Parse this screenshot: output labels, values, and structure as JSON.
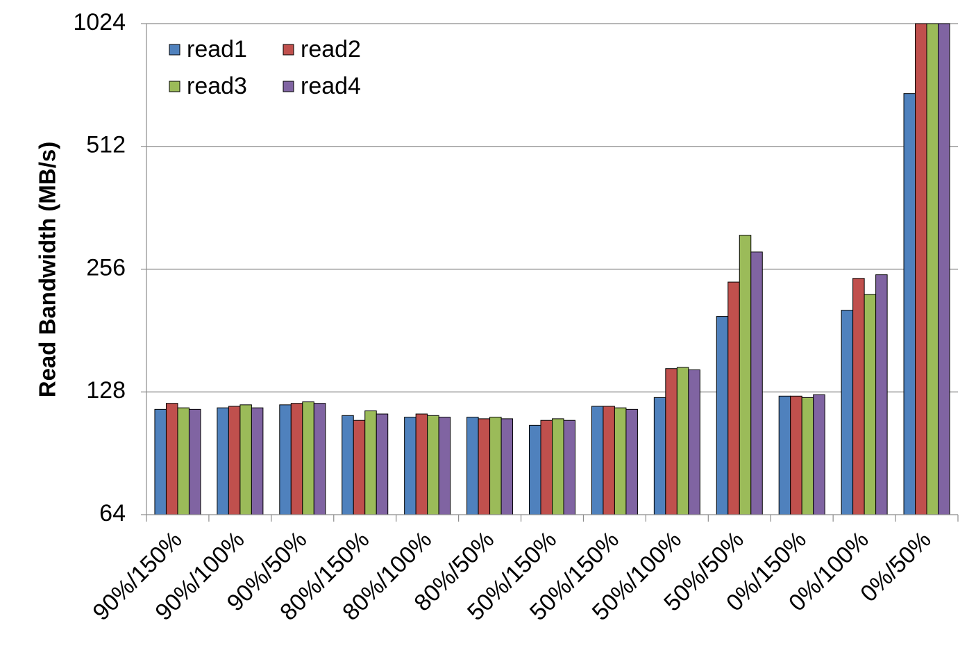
{
  "chart_data": {
    "type": "bar",
    "title": "",
    "xlabel": "",
    "ylabel": "Read Bandwidth (MB/s)",
    "yscale": "log2",
    "ylim": [
      64,
      1024
    ],
    "yticks": [
      64,
      128,
      256,
      512,
      1024
    ],
    "ytick_labels": [
      "64",
      "128",
      "256",
      "512",
      "1024"
    ],
    "grid": true,
    "legend_position": "top-left",
    "categories": [
      "90%/150%",
      "90%/100%",
      "90%/50%",
      "80%/150%",
      "80%/100%",
      "80%/50%",
      "50%/150%",
      "50%/150%",
      "50%/100%",
      "50%/50%",
      "0%/150%",
      "0%/100%",
      "0%/50%"
    ],
    "series": [
      {
        "name": "read1",
        "color": "#4f81bd",
        "values": [
          116,
          117,
          119,
          112,
          111,
          111,
          106,
          118,
          124,
          196,
          125,
          203,
          690
        ]
      },
      {
        "name": "read2",
        "color": "#c0504d",
        "values": [
          120,
          118,
          120,
          109,
          113,
          110,
          109,
          118,
          146,
          238,
          125,
          243,
          1024
        ]
      },
      {
        "name": "read3",
        "color": "#9bbb59",
        "values": [
          117,
          119,
          121,
          115,
          112,
          111,
          110,
          117,
          147,
          310,
          124,
          222,
          1024
        ]
      },
      {
        "name": "read4",
        "color": "#8064a2",
        "values": [
          116,
          117,
          120,
          113,
          111,
          110,
          109,
          116,
          145,
          282,
          126,
          248,
          1024
        ]
      }
    ]
  }
}
